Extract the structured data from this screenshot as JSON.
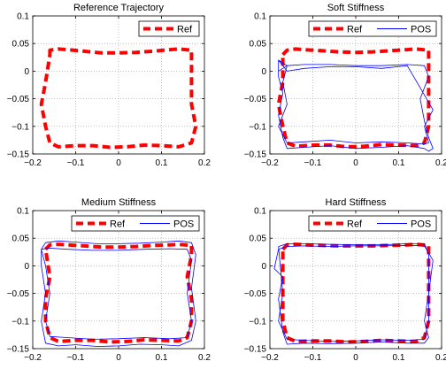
{
  "figure": {
    "background": "#ffffff"
  },
  "styles": {
    "ref_color": "#ff0000",
    "pos_color": "#0000ff",
    "grid_color": "#9a9a9a",
    "axis_color": "#000000"
  },
  "chart_data": [
    {
      "type": "line",
      "title": "Reference Trajectory",
      "xlim": [
        -0.2,
        0.2
      ],
      "ylim": [
        -0.15,
        0.1
      ],
      "xticks": [
        -0.2,
        -0.1,
        0,
        0.1,
        0.2
      ],
      "yticks": [
        -0.15,
        -0.1,
        -0.05,
        0,
        0.05,
        0.1
      ],
      "xtick_labels": [
        "−0.2",
        "−0.1",
        "0",
        "0.1",
        "0.2"
      ],
      "ytick_labels": [
        "−0.15",
        "−0.1",
        "−0.05",
        "0",
        "0.05",
        "0.1"
      ],
      "grid": true,
      "legend_position": "top-right",
      "legend": [
        "Ref"
      ],
      "series": [
        {
          "name": "Ref",
          "style": "dashed",
          "x": [
            -0.16,
            -0.16,
            -0.14,
            -0.12,
            -0.08,
            -0.04,
            0,
            0.04,
            0.08,
            0.12,
            0.14,
            0.17,
            0.17,
            0.17,
            0.17,
            0.18,
            0.17,
            0.14,
            0.1,
            0.06,
            0.02,
            -0.02,
            -0.06,
            -0.1,
            -0.14,
            -0.16,
            -0.17,
            -0.18,
            -0.17,
            -0.16
          ],
          "y": [
            0.03,
            0.038,
            0.04,
            0.039,
            0.036,
            0.033,
            0.033,
            0.034,
            0.036,
            0.039,
            0.04,
            0.038,
            0.02,
            -0.02,
            -0.06,
            -0.1,
            -0.13,
            -0.137,
            -0.135,
            -0.134,
            -0.137,
            -0.138,
            -0.135,
            -0.135,
            -0.137,
            -0.13,
            -0.1,
            -0.06,
            -0.02,
            0.03
          ]
        }
      ]
    },
    {
      "type": "line",
      "title": "Soft Stiffness",
      "xlim": [
        -0.2,
        0.2
      ],
      "ylim": [
        -0.15,
        0.1
      ],
      "xticks": [
        -0.2,
        -0.1,
        0,
        0.1,
        0.2
      ],
      "yticks": [
        -0.15,
        -0.1,
        -0.05,
        0,
        0.05,
        0.1
      ],
      "xtick_labels": [
        "−0.2",
        "−0.1",
        "0",
        "0.1",
        "0.2"
      ],
      "ytick_labels": [
        "−0.15",
        "−0.1",
        "−0.05",
        "0",
        "0.05",
        "0.1"
      ],
      "grid": true,
      "legend_position": "top-right",
      "legend": [
        "Ref",
        "POS"
      ],
      "series": [
        {
          "name": "Ref",
          "style": "dashed",
          "x": [
            -0.17,
            -0.16,
            -0.14,
            -0.12,
            -0.08,
            -0.04,
            0,
            0.04,
            0.08,
            0.12,
            0.14,
            0.17,
            0.17,
            0.17,
            0.17,
            0.17,
            0.16,
            0.14,
            0.1,
            0.06,
            0.02,
            -0.02,
            -0.06,
            -0.1,
            -0.14,
            -0.16,
            -0.17,
            -0.18,
            -0.17,
            -0.17
          ],
          "y": [
            0.03,
            0.038,
            0.04,
            0.039,
            0.037,
            0.035,
            0.034,
            0.035,
            0.037,
            0.039,
            0.04,
            0.038,
            0.02,
            -0.02,
            -0.06,
            -0.1,
            -0.13,
            -0.135,
            -0.134,
            -0.133,
            -0.136,
            -0.137,
            -0.134,
            -0.134,
            -0.136,
            -0.13,
            -0.1,
            -0.06,
            -0.02,
            0.03
          ]
        },
        {
          "name": "POS",
          "style": "solid",
          "x": [
            -0.18,
            -0.16,
            -0.12,
            -0.06,
            0,
            0.06,
            0.12,
            0.16,
            0.17,
            0.15,
            0.16,
            0.17,
            0.18,
            0.17,
            0.16,
            0.12,
            0.06,
            0,
            -0.06,
            -0.12,
            -0.16,
            -0.17,
            -0.18,
            -0.17,
            -0.18,
            -0.18,
            -0.16,
            -0.12,
            -0.06,
            0,
            0.06,
            0.12,
            0.15,
            0.18,
            0.16,
            0.17,
            0.16,
            0.12,
            0.06,
            0,
            -0.06,
            -0.12,
            -0.16,
            -0.18,
            -0.16,
            -0.17,
            -0.16,
            -0.18
          ],
          "y": [
            0.0,
            0.01,
            0.012,
            0.012,
            0.01,
            0.01,
            0.012,
            0.01,
            -0.01,
            -0.05,
            -0.09,
            -0.12,
            -0.14,
            -0.145,
            -0.14,
            -0.135,
            -0.138,
            -0.14,
            -0.135,
            -0.138,
            -0.14,
            -0.12,
            -0.08,
            -0.04,
            -0.01,
            0.02,
            0.0,
            0.005,
            0.008,
            0.008,
            0.005,
            0.01,
            -0.03,
            -0.07,
            -0.1,
            -0.13,
            -0.132,
            -0.13,
            -0.128,
            -0.13,
            -0.125,
            -0.128,
            -0.13,
            -0.1,
            -0.06,
            -0.02,
            0.01,
            0.02
          ]
        }
      ]
    },
    {
      "type": "line",
      "title": "Medium Stiffness",
      "xlim": [
        -0.2,
        0.2
      ],
      "ylim": [
        -0.15,
        0.1
      ],
      "xticks": [
        -0.2,
        -0.1,
        0,
        0.1,
        0.2
      ],
      "yticks": [
        -0.15,
        -0.1,
        -0.05,
        0,
        0.05,
        0.1
      ],
      "xtick_labels": [
        "−0.2",
        "−0.1",
        "0",
        "0.1",
        "0.2"
      ],
      "ytick_labels": [
        "−0.15",
        "−0.1",
        "−0.05",
        "0",
        "0.05",
        "0.1"
      ],
      "grid": true,
      "legend_position": "top-right",
      "legend": [
        "Ref",
        "POS"
      ],
      "series": [
        {
          "name": "Ref",
          "style": "dashed",
          "x": [
            -0.17,
            -0.16,
            -0.14,
            -0.12,
            -0.08,
            -0.04,
            0,
            0.04,
            0.08,
            0.12,
            0.14,
            0.17,
            0.17,
            0.16,
            0.17,
            0.17,
            0.16,
            0.14,
            0.1,
            0.06,
            0.02,
            -0.02,
            -0.06,
            -0.1,
            -0.14,
            -0.16,
            -0.17,
            -0.17,
            -0.16,
            -0.17
          ],
          "y": [
            0.03,
            0.038,
            0.039,
            0.038,
            0.036,
            0.034,
            0.034,
            0.035,
            0.037,
            0.038,
            0.039,
            0.037,
            0.02,
            -0.02,
            -0.06,
            -0.1,
            -0.13,
            -0.136,
            -0.135,
            -0.134,
            -0.137,
            -0.138,
            -0.135,
            -0.135,
            -0.137,
            -0.13,
            -0.1,
            -0.06,
            -0.02,
            0.03
          ]
        },
        {
          "name": "POS",
          "style": "solid",
          "x": [
            -0.18,
            -0.17,
            -0.14,
            -0.1,
            -0.05,
            0,
            0.05,
            0.1,
            0.14,
            0.17,
            0.18,
            0.17,
            0.18,
            0.17,
            0.14,
            0.1,
            0.05,
            0,
            -0.05,
            -0.1,
            -0.14,
            -0.17,
            -0.18,
            -0.17,
            -0.18,
            -0.18,
            -0.16,
            -0.12,
            -0.06,
            0,
            0.06,
            0.12,
            0.16,
            0.17,
            0.16,
            0.17,
            0.16,
            0.12,
            0.06,
            0,
            -0.06,
            -0.12,
            -0.16,
            -0.17,
            -0.16,
            -0.17,
            -0.18
          ],
          "y": [
            0.03,
            0.042,
            0.045,
            0.043,
            0.04,
            0.04,
            0.041,
            0.043,
            0.045,
            0.042,
            0.02,
            -0.04,
            -0.1,
            -0.135,
            -0.145,
            -0.143,
            -0.142,
            -0.145,
            -0.146,
            -0.143,
            -0.145,
            -0.14,
            -0.1,
            -0.05,
            0.0,
            0.03,
            0.032,
            0.03,
            0.028,
            0.028,
            0.03,
            0.031,
            0.03,
            0.01,
            -0.05,
            -0.1,
            -0.13,
            -0.132,
            -0.13,
            -0.132,
            -0.133,
            -0.13,
            -0.128,
            -0.1,
            -0.05,
            0.0,
            0.03
          ]
        }
      ]
    },
    {
      "type": "line",
      "title": "Hard Stiffness",
      "xlim": [
        -0.2,
        0.2
      ],
      "ylim": [
        -0.15,
        0.1
      ],
      "xticks": [
        -0.2,
        -0.1,
        0,
        0.1,
        0.2
      ],
      "yticks": [
        -0.15,
        -0.1,
        -0.05,
        0,
        0.05,
        0.1
      ],
      "xtick_labels": [
        "−0.2",
        "−0.1",
        "0",
        "0.1",
        "0.2"
      ],
      "ytick_labels": [
        "−0.15",
        "−0.1",
        "−0.05",
        "0",
        "0.05",
        "0.1"
      ],
      "grid": true,
      "legend_position": "top-right",
      "legend": [
        "Ref",
        "POS"
      ],
      "series": [
        {
          "name": "Ref",
          "style": "dashed",
          "x": [
            -0.17,
            -0.16,
            -0.14,
            -0.12,
            -0.08,
            -0.04,
            0,
            0.04,
            0.08,
            0.12,
            0.14,
            0.17,
            0.17,
            0.17,
            0.17,
            0.17,
            0.16,
            0.14,
            0.1,
            0.06,
            0.02,
            -0.02,
            -0.06,
            -0.1,
            -0.14,
            -0.16,
            -0.17,
            -0.17,
            -0.17,
            -0.17
          ],
          "y": [
            0.03,
            0.038,
            0.039,
            0.038,
            0.037,
            0.036,
            0.036,
            0.036,
            0.037,
            0.038,
            0.039,
            0.037,
            0.02,
            -0.02,
            -0.06,
            -0.1,
            -0.13,
            -0.137,
            -0.136,
            -0.135,
            -0.137,
            -0.138,
            -0.136,
            -0.136,
            -0.137,
            -0.13,
            -0.1,
            -0.06,
            -0.02,
            0.03
          ]
        },
        {
          "name": "POS",
          "style": "solid",
          "x": [
            -0.18,
            -0.16,
            -0.12,
            -0.06,
            0,
            0.06,
            0.12,
            0.16,
            0.17,
            0.17,
            0.16,
            0.17,
            0.16,
            0.12,
            0.06,
            0,
            -0.06,
            -0.12,
            -0.16,
            -0.17,
            -0.18,
            -0.17,
            -0.19,
            -0.18,
            -0.16,
            -0.12,
            -0.06,
            0,
            0.06,
            0.12,
            0.16,
            0.18,
            0.17,
            0.17,
            0.16,
            0.12,
            0.06,
            0,
            -0.06,
            -0.12,
            -0.16,
            -0.18,
            -0.17,
            -0.18
          ],
          "y": [
            0.035,
            0.04,
            0.04,
            0.039,
            0.038,
            0.038,
            0.04,
            0.04,
            0.02,
            -0.05,
            -0.1,
            -0.13,
            -0.14,
            -0.14,
            -0.138,
            -0.14,
            -0.141,
            -0.14,
            -0.142,
            -0.12,
            -0.06,
            -0.02,
            -0.005,
            0.03,
            0.035,
            0.036,
            0.035,
            0.036,
            0.036,
            0.037,
            0.036,
            0.01,
            -0.05,
            -0.1,
            -0.133,
            -0.135,
            -0.134,
            -0.136,
            -0.137,
            -0.135,
            -0.133,
            -0.1,
            -0.05,
            0.035
          ]
        }
      ]
    }
  ]
}
